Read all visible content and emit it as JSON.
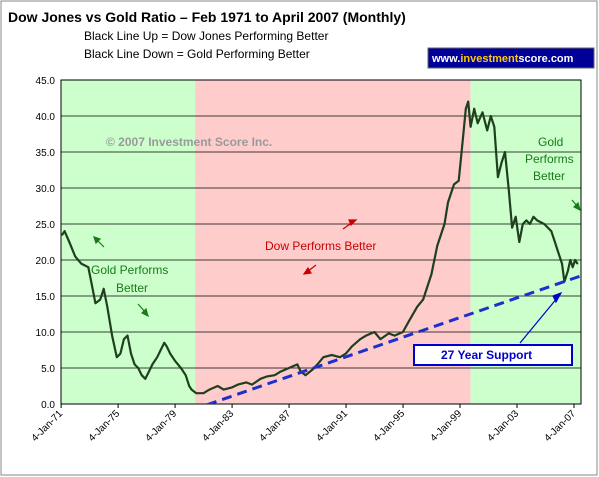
{
  "header": {
    "title": "Dow Jones vs Gold Ratio – Feb 1971 to April 2007 (Monthly)",
    "line1": "Black Line Up = Dow Jones Performing Better",
    "line2": "Black Line Down = Gold Performing Better",
    "brand_prefix": "www.",
    "brand_accent": "investment",
    "brand_suffix": "score.com"
  },
  "annotations": {
    "copyright": "© 2007 Investment Score Inc.",
    "gold_left_1": "Gold Performs",
    "gold_left_2": "Better",
    "dow_middle": "Dow Performs Better",
    "gold_right_1": "Gold",
    "gold_right_2": "Performs",
    "gold_right_3": "Better",
    "support": "27 Year Support"
  },
  "colors": {
    "green_zone": "#ccffcc",
    "red_zone": "#ffcccc",
    "ratio_line": "#1f3f1f",
    "support_line": "#1f2fcc",
    "brand_bg": "#000099"
  },
  "chart_data": {
    "type": "line",
    "title": "Dow Jones vs Gold Ratio – Feb 1971 to April 2007 (Monthly)",
    "xlabel": "",
    "ylabel": "",
    "ylim": [
      0,
      45
    ],
    "grid": true,
    "x_ticks": [
      "4-Jan-71",
      "4-Jan-75",
      "4-Jan-79",
      "4-Jan-83",
      "4-Jan-87",
      "4-Jan-91",
      "4-Jan-95",
      "4-Jan-99",
      "4-Jan-03",
      "4-Jan-07"
    ],
    "y_ticks": [
      "0.0",
      "5.0",
      "10.0",
      "15.0",
      "20.0",
      "25.0",
      "30.0",
      "35.0",
      "40.0",
      "45.0"
    ],
    "xlim": [
      "1971-01-01",
      "2007-07-01"
    ],
    "zones": [
      {
        "start": "1971-01-01",
        "end": "1980-06-01",
        "label": "Gold Performs Better"
      },
      {
        "start": "1980-06-01",
        "end": "1999-10-01",
        "label": "Dow Performs Better"
      },
      {
        "start": "1999-10-01",
        "end": "2007-07-01",
        "label": "Gold Performs Better"
      }
    ],
    "series": [
      {
        "values": [
          [
            "1971-02-01",
            23.5
          ],
          [
            "1971-04-01",
            24.0
          ],
          [
            "1971-08-01",
            22.5
          ],
          [
            "1972-01-01",
            20.5
          ],
          [
            "1972-06-01",
            19.5
          ],
          [
            "1972-12-01",
            19.0
          ],
          [
            "1973-03-01",
            16.5
          ],
          [
            "1973-06-01",
            14.0
          ],
          [
            "1973-10-01",
            14.5
          ],
          [
            "1974-01-01",
            16.0
          ],
          [
            "1974-04-01",
            13.5
          ],
          [
            "1974-08-01",
            9.5
          ],
          [
            "1974-12-01",
            6.5
          ],
          [
            "1975-03-01",
            7.0
          ],
          [
            "1975-06-01",
            9.0
          ],
          [
            "1975-09-01",
            9.5
          ],
          [
            "1975-12-01",
            7.0
          ],
          [
            "1976-03-01",
            5.5
          ],
          [
            "1976-06-01",
            5.0
          ],
          [
            "1976-09-01",
            4.0
          ],
          [
            "1976-12-01",
            3.5
          ],
          [
            "1977-03-01",
            4.5
          ],
          [
            "1977-06-01",
            5.5
          ],
          [
            "1977-10-01",
            6.5
          ],
          [
            "1978-01-01",
            7.5
          ],
          [
            "1978-04-01",
            8.5
          ],
          [
            "1978-06-01",
            8.0
          ],
          [
            "1978-09-01",
            7.0
          ],
          [
            "1979-01-01",
            6.0
          ],
          [
            "1979-06-01",
            5.0
          ],
          [
            "1979-10-01",
            4.0
          ],
          [
            "1980-01-01",
            2.5
          ],
          [
            "1980-03-01",
            2.0
          ],
          [
            "1980-07-01",
            1.5
          ],
          [
            "1981-01-01",
            1.5
          ],
          [
            "1981-06-01",
            2.0
          ],
          [
            "1982-01-01",
            2.5
          ],
          [
            "1982-06-01",
            2.0
          ],
          [
            "1983-01-01",
            2.3
          ],
          [
            "1983-06-01",
            2.7
          ],
          [
            "1984-01-01",
            3.0
          ],
          [
            "1984-06-01",
            2.7
          ],
          [
            "1985-01-01",
            3.5
          ],
          [
            "1985-06-01",
            3.8
          ],
          [
            "1986-01-01",
            4.0
          ],
          [
            "1986-06-01",
            4.5
          ],
          [
            "1987-01-01",
            5.0
          ],
          [
            "1987-08-01",
            5.5
          ],
          [
            "1987-11-01",
            4.5
          ],
          [
            "1988-03-01",
            4.0
          ],
          [
            "1988-09-01",
            4.8
          ],
          [
            "1989-01-01",
            5.5
          ],
          [
            "1989-06-01",
            6.5
          ],
          [
            "1990-01-01",
            6.8
          ],
          [
            "1990-08-01",
            6.5
          ],
          [
            "1991-01-01",
            7.0
          ],
          [
            "1991-06-01",
            8.0
          ],
          [
            "1992-01-01",
            9.0
          ],
          [
            "1992-06-01",
            9.5
          ],
          [
            "1993-01-01",
            10.0
          ],
          [
            "1993-06-01",
            9.0
          ],
          [
            "1994-01-01",
            9.8
          ],
          [
            "1994-06-01",
            9.5
          ],
          [
            "1995-01-01",
            10.0
          ],
          [
            "1995-06-01",
            11.5
          ],
          [
            "1996-01-01",
            13.5
          ],
          [
            "1996-06-01",
            14.5
          ],
          [
            "1997-01-01",
            18.0
          ],
          [
            "1997-06-01",
            22.0
          ],
          [
            "1997-12-01",
            25.0
          ],
          [
            "1998-03-01",
            28.0
          ],
          [
            "1998-08-01",
            30.5
          ],
          [
            "1998-12-01",
            31.0
          ],
          [
            "1999-03-01",
            36.0
          ],
          [
            "1999-06-01",
            41.0
          ],
          [
            "1999-08-01",
            42.0
          ],
          [
            "1999-10-01",
            38.5
          ],
          [
            "2000-01-01",
            41.0
          ],
          [
            "2000-04-01",
            39.0
          ],
          [
            "2000-08-01",
            40.5
          ],
          [
            "2000-12-01",
            38.0
          ],
          [
            "2001-03-01",
            40.0
          ],
          [
            "2001-06-01",
            38.5
          ],
          [
            "2001-09-01",
            31.5
          ],
          [
            "2001-12-01",
            33.5
          ],
          [
            "2002-03-01",
            35.0
          ],
          [
            "2002-06-01",
            30.0
          ],
          [
            "2002-09-01",
            24.5
          ],
          [
            "2002-12-01",
            26.0
          ],
          [
            "2003-03-01",
            22.5
          ],
          [
            "2003-06-01",
            25.0
          ],
          [
            "2003-09-01",
            25.5
          ],
          [
            "2003-12-01",
            25.0
          ],
          [
            "2004-03-01",
            26.0
          ],
          [
            "2004-06-01",
            25.5
          ],
          [
            "2004-12-01",
            25.0
          ],
          [
            "2005-03-01",
            24.5
          ],
          [
            "2005-06-01",
            24.0
          ],
          [
            "2005-09-01",
            22.5
          ],
          [
            "2005-12-01",
            21.0
          ],
          [
            "2006-03-01",
            19.5
          ],
          [
            "2006-05-01",
            17.0
          ],
          [
            "2006-08-01",
            18.5
          ],
          [
            "2006-10-01",
            20.0
          ],
          [
            "2006-12-01",
            19.0
          ],
          [
            "2007-02-01",
            20.0
          ],
          [
            "2007-04-01",
            19.5
          ]
        ]
      },
      {
        "values": [
          [
            "1977-01-01",
            -3.0
          ],
          [
            "2007-07-01",
            17.8
          ]
        ]
      }
    ]
  }
}
